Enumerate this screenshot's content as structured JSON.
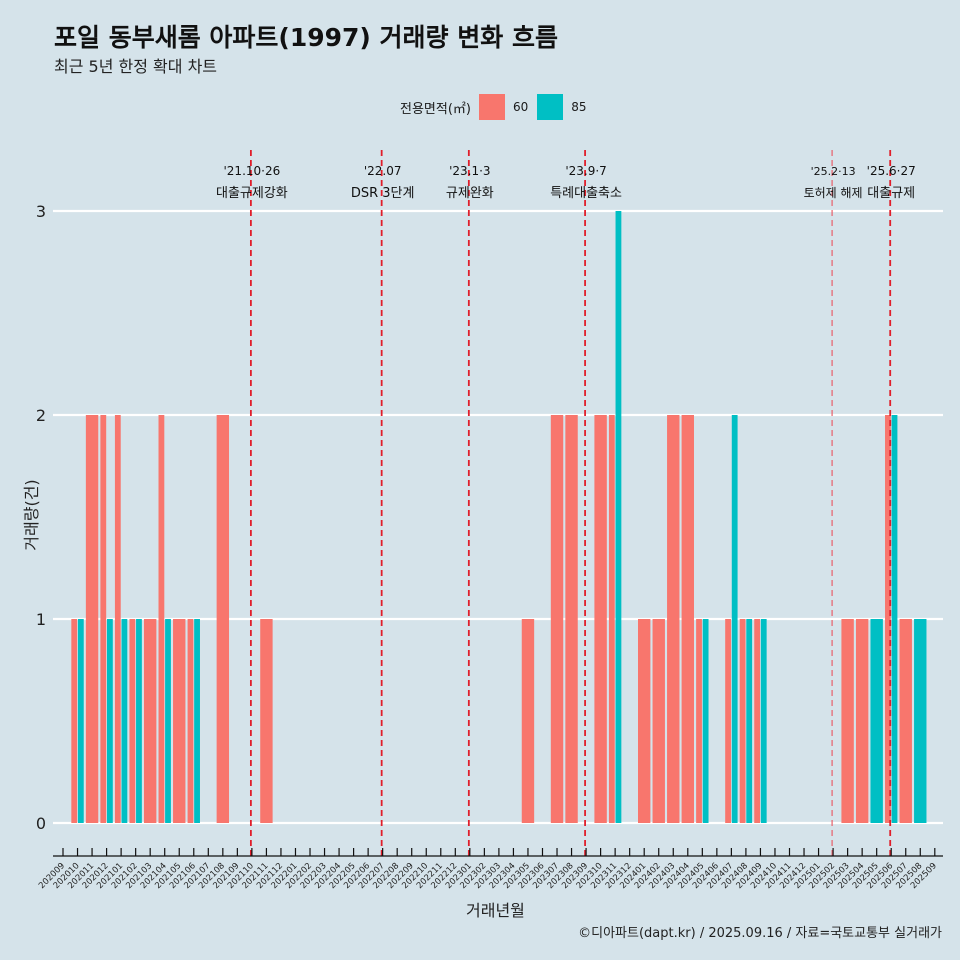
{
  "title": "포일 동부새롬 아파트(1997) 거래량 변화 흐름",
  "subtitle": "최근 5년 한정 확대 차트",
  "caption": "©디아파트(dapt.kr) / 2025.09.16 / 자료=국토교통부 실거래가",
  "legend": {
    "title": "전용면적(㎡)",
    "items": [
      {
        "label": "60",
        "color": "#f8766d"
      },
      {
        "label": "85",
        "color": "#00bfc4"
      }
    ]
  },
  "chart_data": {
    "type": "bar",
    "title": "포일 동부새롬 아파트(1997) 거래량 변화 흐름",
    "xlabel": "거래년월",
    "ylabel": "거래량(건)",
    "ylim": [
      0,
      3
    ],
    "yticks": [
      0,
      1,
      2,
      3
    ],
    "grid": true,
    "legend_position": "top",
    "categories": [
      "202009",
      "202010",
      "202011",
      "202012",
      "202101",
      "202102",
      "202103",
      "202104",
      "202105",
      "202106",
      "202107",
      "202108",
      "202109",
      "202110",
      "202111",
      "202112",
      "202201",
      "202202",
      "202203",
      "202204",
      "202205",
      "202206",
      "202207",
      "202208",
      "202209",
      "202210",
      "202211",
      "202212",
      "202301",
      "202302",
      "202303",
      "202304",
      "202305",
      "202306",
      "202307",
      "202308",
      "202309",
      "202310",
      "202311",
      "202312",
      "202401",
      "202402",
      "202403",
      "202404",
      "202405",
      "202406",
      "202407",
      "202408",
      "202409",
      "202410",
      "202411",
      "202412",
      "202501",
      "202502",
      "202503",
      "202504",
      "202505",
      "202506",
      "202507",
      "202508",
      "202509"
    ],
    "series": [
      {
        "name": "60",
        "color": "#f8766d",
        "values": [
          0,
          1,
          2,
          2,
          2,
          1,
          1,
          2,
          1,
          1,
          0,
          2,
          0,
          0,
          1,
          0,
          0,
          0,
          0,
          0,
          0,
          0,
          0,
          0,
          0,
          0,
          0,
          0,
          0,
          0,
          0,
          0,
          1,
          0,
          2,
          2,
          0,
          2,
          2,
          0,
          1,
          1,
          2,
          2,
          1,
          0,
          1,
          1,
          1,
          0,
          0,
          0,
          0,
          0,
          1,
          1,
          0,
          2,
          1,
          0,
          0
        ]
      },
      {
        "name": "85",
        "color": "#00bfc4",
        "values": [
          0,
          1,
          0,
          1,
          1,
          1,
          0,
          1,
          0,
          1,
          0,
          0,
          0,
          0,
          0,
          0,
          0,
          0,
          0,
          0,
          0,
          0,
          0,
          0,
          0,
          0,
          0,
          0,
          0,
          0,
          0,
          0,
          0,
          0,
          0,
          0,
          0,
          0,
          3,
          0,
          0,
          0,
          0,
          0,
          1,
          0,
          2,
          1,
          1,
          0,
          0,
          0,
          0,
          0,
          0,
          0,
          1,
          2,
          0,
          1,
          0
        ]
      }
    ],
    "annotations": [
      {
        "month": "202110",
        "date": "'21.10·26",
        "label": "대출규제강화",
        "style": "strong"
      },
      {
        "month": "202207",
        "date": "'22.07",
        "label": "DSR 3단계",
        "style": "strong"
      },
      {
        "month": "202301",
        "date": "'23.1·3",
        "label": "규제완화",
        "style": "strong"
      },
      {
        "month": "202309",
        "date": "'23.9·7",
        "label": "특례대출축소",
        "style": "strong"
      },
      {
        "month": "202502",
        "date": "'25.2·13",
        "label": "토허제 해제",
        "style": "light"
      },
      {
        "month": "202506",
        "date": "'25.6·27",
        "label": "대출규제",
        "style": "strong"
      }
    ]
  }
}
